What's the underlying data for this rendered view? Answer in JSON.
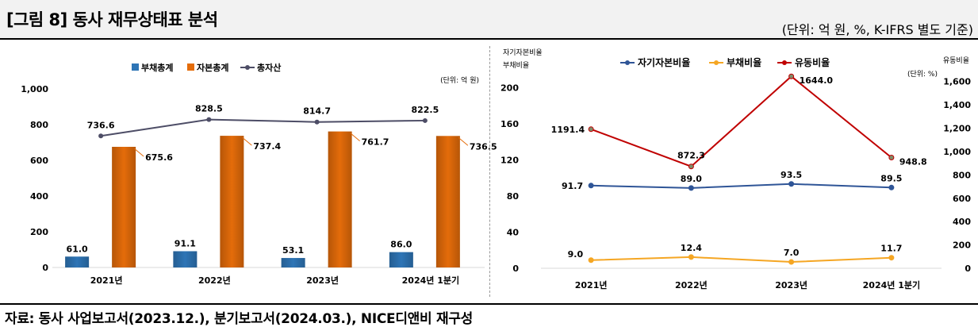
{
  "header": {
    "title": "[그림 8] 동사 재무상태표 분석",
    "unit_note": "(단위: 억 원, %, K-IFRS 별도 기준)"
  },
  "footer": {
    "source": "자료: 동사 사업보고서(2023.12.), 분기보고서(2024.03.), NICE디앤비 재구성"
  },
  "chart_data": [
    {
      "type": "bar",
      "unit_label": "(단위: 억 원)",
      "categories": [
        "2021년",
        "2022년",
        "2023년",
        "2024년 1분기"
      ],
      "ylim": [
        0,
        1000
      ],
      "yticks": [
        "0",
        "200",
        "400",
        "600",
        "800",
        "1,000"
      ],
      "legend_position": "top",
      "series": [
        {
          "name": "부채총계",
          "kind": "bar",
          "color": "#2e75b6",
          "values": [
            61.0,
            91.1,
            53.1,
            86.0
          ],
          "labels": [
            "61.0",
            "91.1",
            "53.1",
            "86.0"
          ]
        },
        {
          "name": "자본총계",
          "kind": "bar",
          "color": "#e46c0a",
          "values": [
            675.6,
            737.4,
            761.7,
            736.5
          ],
          "labels": [
            "675.6",
            "737.4",
            "761.7",
            "736.5"
          ]
        },
        {
          "name": "총자산",
          "kind": "line",
          "color": "#4d4d66",
          "values": [
            736.6,
            828.5,
            814.7,
            822.5
          ],
          "labels": [
            "736.6",
            "828.5",
            "814.7",
            "822.5"
          ]
        }
      ]
    },
    {
      "type": "line",
      "categories": [
        "2021년",
        "2022년",
        "2023년",
        "2024년 1분기"
      ],
      "left_axis_title_1": "자기자본비율",
      "left_axis_title_2": "부채비율",
      "right_axis_title": "유동비율",
      "ylim_left": [
        0,
        220
      ],
      "yticks_left": [
        "0",
        "40",
        "80",
        "120",
        "160",
        "200"
      ],
      "ylim_right": [
        0,
        1700
      ],
      "yticks_right": [
        "0",
        "200",
        "400",
        "600",
        "800",
        "1,000",
        "1,200",
        "1,400",
        "1,600"
      ],
      "right_unit": "(단위: %)",
      "legend_position": "top",
      "series": [
        {
          "name": "자기자본비율",
          "axis": "left",
          "color": "#2f5597",
          "values": [
            91.7,
            89.0,
            93.5,
            89.5
          ],
          "labels": [
            "91.7",
            "89.0",
            "93.5",
            "89.5"
          ]
        },
        {
          "name": "부채비율",
          "axis": "left",
          "color": "#f5a623",
          "values": [
            9.0,
            12.4,
            7.0,
            11.7
          ],
          "labels": [
            "9.0",
            "12.4",
            "7.0",
            "11.7"
          ]
        },
        {
          "name": "유동비율",
          "axis": "right",
          "color": "#c00000",
          "values": [
            1191.4,
            872.3,
            1644.0,
            948.8
          ],
          "labels": [
            "1191.4",
            "872.3",
            "1644.0",
            "948.8"
          ]
        }
      ]
    }
  ]
}
